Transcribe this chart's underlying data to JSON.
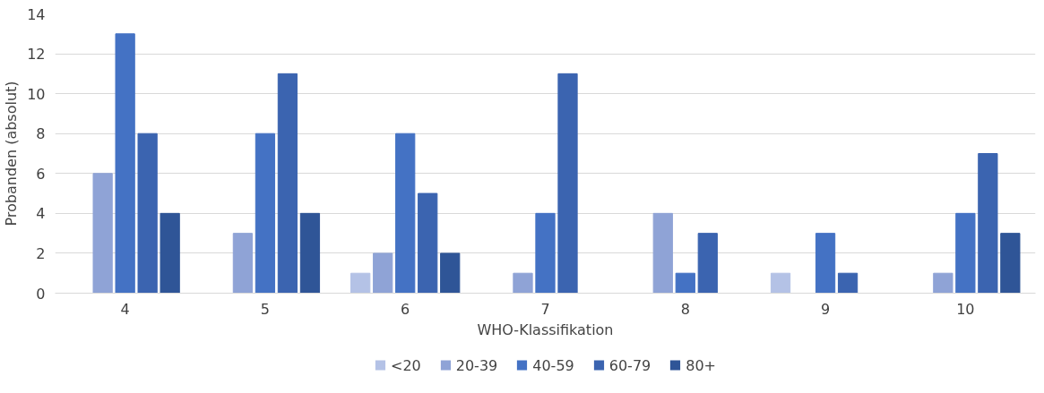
{
  "chart_data": {
    "type": "bar",
    "xlabel": "WHO-Klassifikation",
    "ylabel": "Probanden (absolut)",
    "categories": [
      "4",
      "5",
      "6",
      "7",
      "8",
      "9",
      "10"
    ],
    "series": [
      {
        "name": "<20",
        "color": "#b4c2e6",
        "values": [
          0,
          0,
          1,
          0,
          0,
          1,
          0
        ]
      },
      {
        "name": "20-39",
        "color": "#8fa3d6",
        "values": [
          6,
          3,
          2,
          1,
          4,
          0,
          1
        ]
      },
      {
        "name": "40-59",
        "color": "#4472c4",
        "values": [
          13,
          8,
          8,
          4,
          1,
          3,
          4
        ]
      },
      {
        "name": "60-79",
        "color": "#3b64b0",
        "values": [
          8,
          11,
          5,
          11,
          3,
          1,
          7
        ]
      },
      {
        "name": "80+",
        "color": "#2f5597",
        "values": [
          4,
          4,
          2,
          0,
          0,
          0,
          3
        ]
      }
    ],
    "ylim": [
      0,
      14
    ],
    "yticks": [
      0,
      2,
      4,
      6,
      8,
      10,
      12,
      14
    ],
    "grid": "y",
    "legend": "bottom"
  }
}
